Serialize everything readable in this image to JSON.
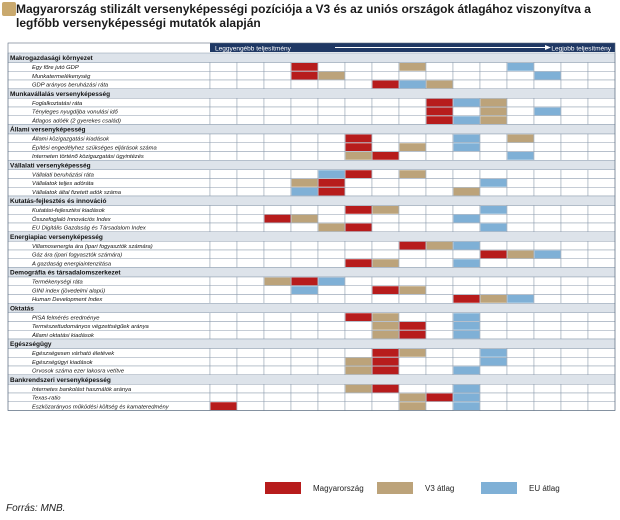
{
  "title": "Magyarország stilizált versenyképességi pozíciója a V3 és az uniós országok átlagához viszonyítva a legfőbb versenyképességi mutatók alapján",
  "chart_data": {
    "type": "table",
    "header": {
      "left": "Leggyengébb teljesítmény",
      "right": "Legjobb teljesítmény"
    },
    "n_columns": 15,
    "position_scale": "1 = leggyengébb teljesítmény, 15 = legjobb teljesítmény",
    "series": [
      {
        "key": "HU",
        "name": "Magyarország"
      },
      {
        "key": "V3",
        "name": "V3 átlag"
      },
      {
        "key": "EU",
        "name": "EU átlag"
      }
    ],
    "sections": [
      {
        "name": "Makrogazdasági környezet",
        "rows": [
          {
            "label": "Egy főre jutó GDP",
            "HU": 4,
            "V3": 8,
            "EU": 12
          },
          {
            "label": "Munkatermelékenység",
            "HU": 4,
            "V3": 5,
            "EU": 13
          },
          {
            "label": "GDP arányos beruházási ráta",
            "HU": 7,
            "V3": 9,
            "EU": 8
          }
        ]
      },
      {
        "name": "Munkavállalás versenyképesség",
        "rows": [
          {
            "label": "Foglalkoztatási ráta",
            "HU": 9,
            "V3": 11,
            "EU": 10
          },
          {
            "label": "Tényleges nyugdíjba vonulási idő",
            "HU": 9,
            "V3": 11,
            "EU": 13
          },
          {
            "label": "Átlagos adóék (2 gyerekes család)",
            "HU": 9,
            "V3": 11,
            "EU": 10
          }
        ]
      },
      {
        "name": "Állami versenyképesség",
        "rows": [
          {
            "label": "Állami közigazgatási kiadások",
            "HU": 6,
            "V3": 12,
            "EU": 10
          },
          {
            "label": "Építési engedélyhez szükséges eljárások száma",
            "HU": 6,
            "V3": 8,
            "EU": 10
          },
          {
            "label": "Interneten történő közigazgatási ügyintézés",
            "HU": 7,
            "V3": 6,
            "EU": 12
          }
        ]
      },
      {
        "name": "Vállalati versenyképesség",
        "rows": [
          {
            "label": "Vállalati beruházási ráta",
            "HU": 6,
            "V3": 8,
            "EU": 5
          },
          {
            "label": "Vállalatok teljes adóráta",
            "HU": 5,
            "V3": 4,
            "EU": 11
          },
          {
            "label": "Vállalatok által fizetett adók száma",
            "HU": 5,
            "V3": 10,
            "EU": 4
          }
        ]
      },
      {
        "name": "Kutatás-fejlesztés és innováció",
        "rows": [
          {
            "label": "Kutatási-fejlesztési kiadások",
            "HU": 6,
            "V3": 7,
            "EU": 11
          },
          {
            "label": "Összefoglaló Innovációs Index",
            "HU": 3,
            "V3": 4,
            "EU": 10
          },
          {
            "label": "EU Digitális Gazdaság és Társadalom Index",
            "HU": 6,
            "V3": 5,
            "EU": 11
          }
        ]
      },
      {
        "name": "Energiapiac versenyképesség",
        "rows": [
          {
            "label": "Villamosenergia ára (ipari fogyasztók számára)",
            "HU": 8,
            "V3": 9,
            "EU": 10
          },
          {
            "label": "Gáz ára (ipari fogyasztók számára)",
            "HU": 11,
            "V3": 12,
            "EU": 13
          },
          {
            "label": "A gazdaság energiaintenzitása",
            "HU": 6,
            "V3": 7,
            "EU": 10
          }
        ]
      },
      {
        "name": "Demográfia és társadalomszerkezet",
        "rows": [
          {
            "label": "Termékenységi ráta",
            "HU": 4,
            "V3": 3,
            "EU": 5
          },
          {
            "label": "GINI index (jövedelmi alapú)",
            "HU": 7,
            "V3": 8,
            "EU": 4
          },
          {
            "label": "Human Development Index",
            "HU": 10,
            "V3": 11,
            "EU": 12
          }
        ]
      },
      {
        "name": "Oktatás",
        "rows": [
          {
            "label": "PISA felmérés eredménye",
            "HU": 6,
            "V3": 7,
            "EU": 10
          },
          {
            "label": "Természettudományos végzettségűek aránya",
            "HU": 8,
            "V3": 7,
            "EU": 10
          },
          {
            "label": "Állami oktatási kiadások",
            "HU": 8,
            "V3": 7,
            "EU": 10
          }
        ]
      },
      {
        "name": "Egészségügy",
        "rows": [
          {
            "label": "Egészségesen várható életévek",
            "HU": 7,
            "V3": 8,
            "EU": 11
          },
          {
            "label": "Egészségügyi kiadások",
            "HU": 7,
            "V3": 6,
            "EU": 11
          },
          {
            "label": "Orvosok száma ezer lakosra vetítve",
            "HU": 7,
            "V3": 6,
            "EU": 10
          }
        ]
      },
      {
        "name": "Bankrendszeri versenyképesség",
        "rows": [
          {
            "label": "Internetes bankolást használók aránya",
            "HU": 7,
            "V3": 6,
            "EU": 10
          },
          {
            "label": "Texas-ratio",
            "HU": 9,
            "V3": 8,
            "EU": 10
          },
          {
            "label": "Eszközarányos működési költség és kamateredmény",
            "HU": 1,
            "V3": 8,
            "EU": 10
          }
        ]
      }
    ],
    "colors": {
      "HU": "#b71c1c",
      "V3": "#bca37a",
      "EU": "#7fb0d6",
      "header": "#1f3864",
      "section": "#dde3ea",
      "grid": "#8c9bad"
    }
  },
  "legend": {
    "hu": "Magyarország",
    "v3": "V3 átlag",
    "eu": "EU átlag"
  },
  "source": "Forrás: MNB."
}
